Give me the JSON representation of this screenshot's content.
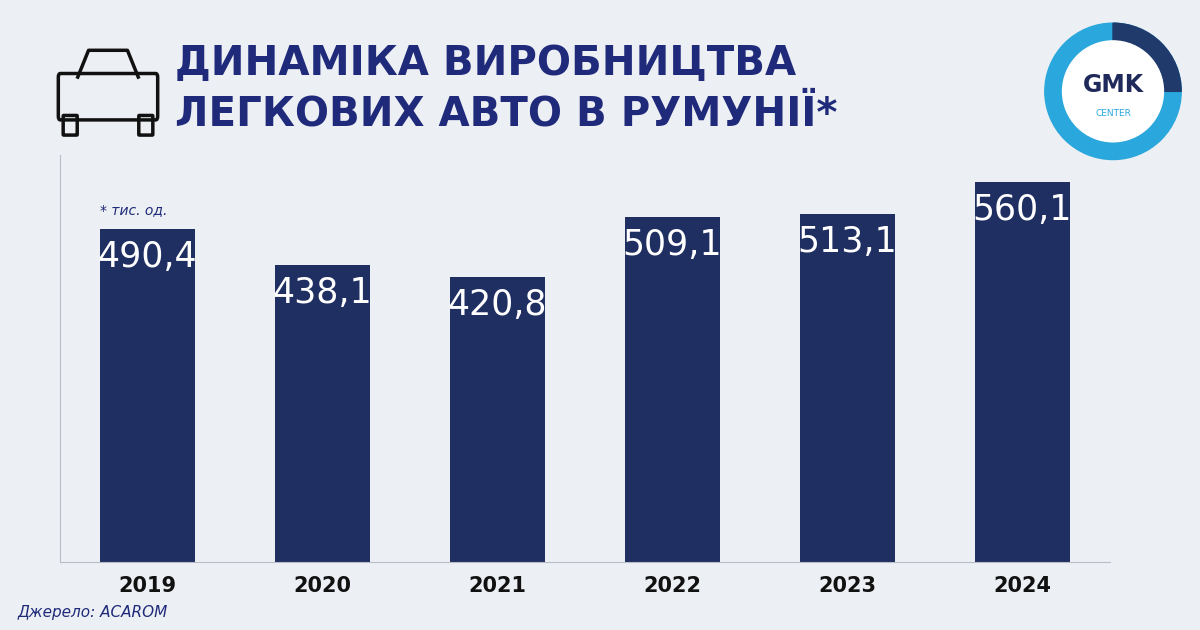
{
  "chart_data": {
    "type": "bar",
    "title": "ДИНАМІКА ВИРОБНИЦТВА\nЛЕГКОВИХ АВТО В РУМУНІЇ*",
    "categories": [
      "2019",
      "2020",
      "2021",
      "2022",
      "2023",
      "2024"
    ],
    "values": [
      490.4,
      438.1,
      420.8,
      509.1,
      513.1,
      560.1
    ],
    "value_labels": [
      "490,4",
      "438,1",
      "420,8",
      "509,1",
      "513,1",
      "560,1"
    ],
    "color": "#1f2f62",
    "ylim": [
      0,
      600
    ],
    "yticks": [],
    "tick_labels": "x",
    "data_labels": true,
    "grid": false,
    "annotations": [
      "* тис. од.",
      "Джерело: ACAROM",
      "GMK",
      "CENTER"
    ]
  }
}
